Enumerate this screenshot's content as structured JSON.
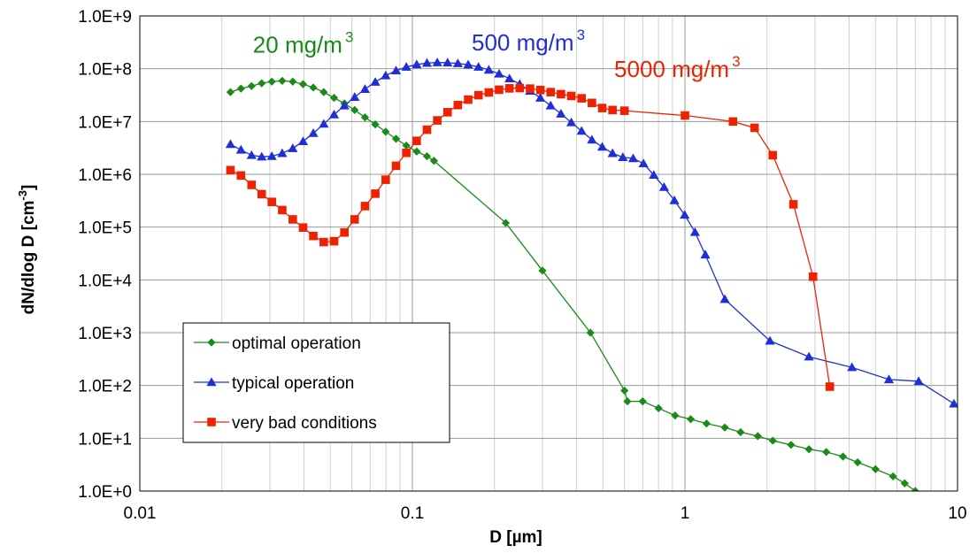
{
  "chart_data": {
    "type": "line",
    "x_scale": "log",
    "y_scale": "log",
    "xlim": [
      0.01,
      10
    ],
    "ylim": [
      1,
      1000000000
    ],
    "grid": true,
    "legend_position": "bottom-left",
    "xlabel": "D [µm]",
    "ylabel": "dN/dlog D [cm",
    "ylabel_sup": "-3",
    "ylabel_end": "]",
    "x_tick_labels": [
      "0.01",
      "0.1",
      "1",
      "10"
    ],
    "y_tick_labels": [
      "1.0E+0",
      "1.0E+1",
      "1.0E+2",
      "1.0E+3",
      "1.0E+4",
      "1.0E+5",
      "1.0E+6",
      "1.0E+7",
      "1.0E+8",
      "1.0E+9"
    ],
    "annotations": [
      {
        "text": "20 mg/m",
        "sup": "3",
        "color": "#1a8a1a",
        "x": 0.026,
        "y": 200000000
      },
      {
        "text": "500 mg/m",
        "sup": "3",
        "color": "#1f2fd6",
        "x": 0.165,
        "y": 220000000
      },
      {
        "text": "5000 mg/m",
        "sup": "3",
        "color": "#ee2200",
        "x": 0.55,
        "y": 70000000
      }
    ],
    "series": [
      {
        "name": "optimal operation",
        "color": "#1a8a1a",
        "marker": "diamond",
        "points": [
          [
            0.0215,
            36000000.0
          ],
          [
            0.0235,
            42000000.0
          ],
          [
            0.0257,
            47000000.0
          ],
          [
            0.028,
            53000000.0
          ],
          [
            0.0305,
            57000000.0
          ],
          [
            0.0333,
            59000000.0
          ],
          [
            0.0364,
            57000000.0
          ],
          [
            0.0397,
            51000000.0
          ],
          [
            0.0433,
            44000000.0
          ],
          [
            0.0473,
            36000000.0
          ],
          [
            0.0516,
            28000000.0
          ],
          [
            0.0563,
            22000000.0
          ],
          [
            0.0614,
            16500000.0
          ],
          [
            0.067,
            12000000.0
          ],
          [
            0.0731,
            8800000.0
          ],
          [
            0.0798,
            6400000.0
          ],
          [
            0.0871,
            4700000.0
          ],
          [
            0.095,
            3500000.0
          ],
          [
            0.1037,
            2700000.0
          ],
          [
            0.1131,
            2200000.0
          ],
          [
            0.12,
            1800000.0
          ],
          [
            0.22,
            120000.0
          ],
          [
            0.3,
            15000.0
          ],
          [
            0.45,
            1000.0
          ],
          [
            0.6,
            80
          ],
          [
            0.615,
            50
          ],
          [
            0.7,
            50
          ],
          [
            0.8,
            37
          ],
          [
            0.92,
            27
          ],
          [
            1.05,
            23
          ],
          [
            1.2,
            19
          ],
          [
            1.4,
            16
          ],
          [
            1.6,
            13
          ],
          [
            1.85,
            11
          ],
          [
            2.1,
            9
          ],
          [
            2.45,
            7.5
          ],
          [
            2.85,
            6.2
          ],
          [
            3.3,
            5.5
          ],
          [
            3.8,
            4.5
          ],
          [
            4.3,
            3.5
          ],
          [
            5.0,
            2.6
          ],
          [
            5.8,
            1.9
          ],
          [
            6.4,
            1.4
          ],
          [
            7.0,
            1.0
          ],
          [
            8.0,
            0.6
          ]
        ]
      },
      {
        "name": "typical operation",
        "color": "#1f2fd6",
        "marker": "triangle",
        "points": [
          [
            0.0215,
            3700000.0
          ],
          [
            0.0235,
            2900000.0
          ],
          [
            0.0257,
            2300000.0
          ],
          [
            0.028,
            2150000.0
          ],
          [
            0.0305,
            2200000.0
          ],
          [
            0.0333,
            2500000.0
          ],
          [
            0.0364,
            3100000.0
          ],
          [
            0.0397,
            4200000.0
          ],
          [
            0.0433,
            6000000.0
          ],
          [
            0.0473,
            9000000.0
          ],
          [
            0.0516,
            13500000.0
          ],
          [
            0.0563,
            20000000.0
          ],
          [
            0.0614,
            29000000.0
          ],
          [
            0.067,
            41000000.0
          ],
          [
            0.0731,
            56000000.0
          ],
          [
            0.0798,
            74000000.0
          ],
          [
            0.0871,
            92000000.0
          ],
          [
            0.095,
            108000000.0
          ],
          [
            0.1037,
            120000000.0
          ],
          [
            0.1131,
            128000000.0
          ],
          [
            0.1234,
            131000000.0
          ],
          [
            0.1346,
            130000000.0
          ],
          [
            0.1468,
            126000000.0
          ],
          [
            0.1602,
            119000000.0
          ],
          [
            0.1748,
            108000000.0
          ],
          [
            0.1907,
            95000000.0
          ],
          [
            0.208,
            80000000.0
          ],
          [
            0.227,
            65000000.0
          ],
          [
            0.2476,
            51000000.0
          ],
          [
            0.2702,
            38000000.0
          ],
          [
            0.2948,
            28000000.0
          ],
          [
            0.3216,
            20000000.0
          ],
          [
            0.3508,
            14000000.0
          ],
          [
            0.3828,
            9600000.0
          ],
          [
            0.4176,
            6600000.0
          ],
          [
            0.4556,
            4500000.0
          ],
          [
            0.4971,
            3300000.0
          ],
          [
            0.5423,
            2500000.0
          ],
          [
            0.5917,
            2100000.0
          ],
          [
            0.6455,
            2000000.0
          ],
          [
            0.7042,
            1600000.0
          ],
          [
            0.7683,
            970000.0
          ],
          [
            0.8382,
            570000.0
          ],
          [
            0.9145,
            320000.0
          ],
          [
            0.9977,
            170000.0
          ],
          [
            1.0885,
            80000.0
          ],
          [
            1.1875,
            30000.0
          ],
          [
            1.4,
            4300.0
          ],
          [
            2.05,
            700
          ],
          [
            2.85,
            350
          ],
          [
            4.1,
            220
          ],
          [
            5.6,
            130
          ],
          [
            7.2,
            120
          ],
          [
            9.7,
            45
          ],
          [
            11.5,
            25
          ]
        ]
      },
      {
        "name": "very bad conditions",
        "color": "#ee2200",
        "marker": "square",
        "points": [
          [
            0.0215,
            1200000.0
          ],
          [
            0.0235,
            950000.0
          ],
          [
            0.0257,
            630000.0
          ],
          [
            0.028,
            420000.0
          ],
          [
            0.0305,
            300000.0
          ],
          [
            0.0333,
            210000.0
          ],
          [
            0.0364,
            140000.0
          ],
          [
            0.0397,
            98000.0
          ],
          [
            0.0433,
            68000.0
          ],
          [
            0.0473,
            52000.0
          ],
          [
            0.0516,
            54000.0
          ],
          [
            0.0563,
            79000.0
          ],
          [
            0.0614,
            140000.0
          ],
          [
            0.067,
            250000.0
          ],
          [
            0.0731,
            430000.0
          ],
          [
            0.0798,
            790000.0
          ],
          [
            0.0871,
            1450000.0
          ],
          [
            0.095,
            2550000.0
          ],
          [
            0.1037,
            4300000.0
          ],
          [
            0.1131,
            7000000.0
          ],
          [
            0.1234,
            10500000.0
          ],
          [
            0.1346,
            15000000.0
          ],
          [
            0.1468,
            20500000.0
          ],
          [
            0.1602,
            26000000.0
          ],
          [
            0.1748,
            31500000.0
          ],
          [
            0.1907,
            35500000.0
          ],
          [
            0.208,
            40000000.0
          ],
          [
            0.227,
            42500000.0
          ],
          [
            0.2476,
            43000000.0
          ],
          [
            0.2702,
            42000000.0
          ],
          [
            0.2948,
            39500000.0
          ],
          [
            0.3216,
            36000000.0
          ],
          [
            0.3508,
            33000000.0
          ],
          [
            0.3828,
            30500000.0
          ],
          [
            0.4176,
            27500000.0
          ],
          [
            0.4556,
            22500000.0
          ],
          [
            0.4971,
            18000000.0
          ],
          [
            0.5423,
            16500000.0
          ],
          [
            0.6,
            16000000.0
          ],
          [
            1.0,
            13000000.0
          ],
          [
            1.5,
            10000000.0
          ],
          [
            1.8,
            7600000.0
          ],
          [
            2.1,
            2300000.0
          ],
          [
            2.5,
            270000.0
          ],
          [
            2.95,
            11500.0
          ],
          [
            3.4,
            95
          ]
        ]
      }
    ]
  }
}
